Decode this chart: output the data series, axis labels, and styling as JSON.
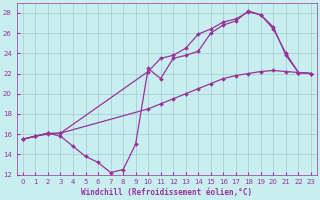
{
  "xlabel": "Windchill (Refroidissement éolien,°C)",
  "ylabel": "",
  "xlim": [
    -0.5,
    23.5
  ],
  "ylim": [
    12,
    29
  ],
  "xticks": [
    0,
    1,
    2,
    3,
    4,
    5,
    6,
    7,
    8,
    9,
    10,
    11,
    12,
    13,
    14,
    15,
    16,
    17,
    18,
    19,
    20,
    21,
    22,
    23
  ],
  "yticks": [
    12,
    14,
    16,
    18,
    20,
    22,
    24,
    26,
    28
  ],
  "bg_color": "#c8eef0",
  "grid_color": "#a0ccd0",
  "line_color": "#993399",
  "lines": [
    {
      "x": [
        0,
        1,
        2,
        3,
        10,
        11,
        12,
        13,
        14,
        15,
        16,
        17,
        18,
        19,
        20,
        21,
        22,
        23
      ],
      "y": [
        15.5,
        15.8,
        16.0,
        16.1,
        18.5,
        19.0,
        19.5,
        20.0,
        20.5,
        21.0,
        21.5,
        21.8,
        22.0,
        22.2,
        22.3,
        22.2,
        22.1,
        22.0
      ]
    },
    {
      "x": [
        0,
        1,
        2,
        3,
        4,
        5,
        6,
        7,
        8,
        9,
        10,
        11,
        12,
        13,
        14,
        15,
        16,
        17,
        18,
        19,
        20,
        21,
        22,
        23
      ],
      "y": [
        15.5,
        15.8,
        16.1,
        15.8,
        14.8,
        13.8,
        13.2,
        12.2,
        12.5,
        15.0,
        22.5,
        21.5,
        23.5,
        23.8,
        24.2,
        26.0,
        26.8,
        27.2,
        28.2,
        27.8,
        26.4,
        24.0,
        22.1,
        22.0
      ]
    },
    {
      "x": [
        0,
        1,
        2,
        3,
        10,
        11,
        12,
        13,
        14,
        15,
        16,
        17,
        18,
        19,
        20,
        21,
        22,
        23
      ],
      "y": [
        15.5,
        15.8,
        16.1,
        16.1,
        22.2,
        23.5,
        23.8,
        24.5,
        25.9,
        26.4,
        27.1,
        27.4,
        28.1,
        27.8,
        26.6,
        23.8,
        22.1,
        22.0
      ]
    }
  ]
}
